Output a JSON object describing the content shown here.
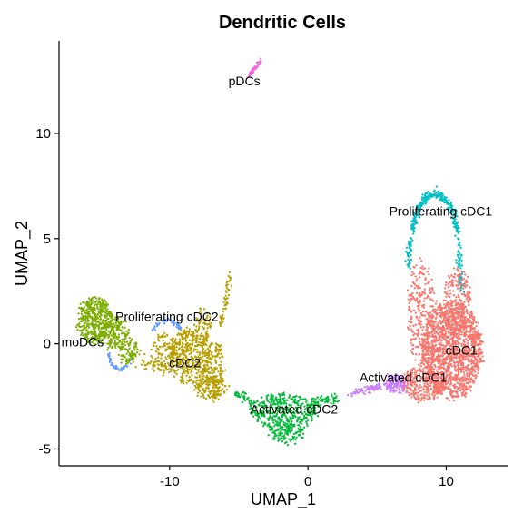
{
  "chart_data": {
    "type": "scatter",
    "title": "Dendritic Cells",
    "xlabel": "UMAP_1",
    "ylabel": "UMAP_2",
    "xlim": [
      -18,
      14.5
    ],
    "ylim": [
      -5.8,
      14.4
    ],
    "xticks": [
      -10,
      0,
      10
    ],
    "yticks": [
      -5,
      0,
      5,
      10
    ],
    "grid": false,
    "legend": "none",
    "clusters": [
      {
        "label": "pDCs",
        "color": "#F564E3",
        "label_pos": [
          -4.6,
          12.5
        ],
        "blobs": [
          {
            "shape": "line",
            "from": [
              -4.4,
              12.6
            ],
            "to": [
              -3.4,
              13.5
            ],
            "sd": 0.06,
            "n": 45
          }
        ]
      },
      {
        "label": "Proliferating cDC1",
        "color": "#00BFC4",
        "label_pos": [
          9.6,
          6.3
        ],
        "blobs": [
          {
            "shape": "ring",
            "center": [
              9.2,
              5.0
            ],
            "rx": 1.6,
            "ry": 2.1,
            "a0": 10,
            "a1": 170,
            "sd": 0.1,
            "n": 260
          },
          {
            "shape": "line",
            "from": [
              7.4,
              5.0
            ],
            "to": [
              7.2,
              3.7
            ],
            "sd": 0.12,
            "n": 40
          },
          {
            "shape": "line",
            "from": [
              10.9,
              5.0
            ],
            "to": [
              11.1,
              2.4
            ],
            "sd": 0.1,
            "n": 60
          }
        ]
      },
      {
        "label": "cDC1",
        "color": "#F8766D",
        "label_pos": [
          11.1,
          -0.3
        ],
        "blobs": [
          {
            "shape": "ellipse",
            "center": [
              10.4,
              -0.3
            ],
            "rx": 2.2,
            "ry": 2.3,
            "n": 1500
          },
          {
            "shape": "ellipse",
            "center": [
              8.2,
              1.4
            ],
            "rx": 1.0,
            "ry": 2.6,
            "n": 250
          },
          {
            "shape": "ellipse",
            "center": [
              10.8,
              2.0
            ],
            "rx": 1.0,
            "ry": 1.6,
            "n": 220
          },
          {
            "shape": "ellipse",
            "center": [
              8.4,
              -1.9
            ],
            "rx": 1.6,
            "ry": 0.8,
            "n": 300
          }
        ]
      },
      {
        "label": "Activated cDC1",
        "color": "#C77CFF",
        "label_pos": [
          6.9,
          -1.6
        ],
        "blobs": [
          {
            "shape": "line",
            "from": [
              3.0,
              -2.4
            ],
            "to": [
              6.6,
              -1.8
            ],
            "sd": 0.09,
            "n": 70
          },
          {
            "shape": "ellipse",
            "center": [
              6.3,
              -1.9
            ],
            "rx": 0.7,
            "ry": 0.4,
            "n": 110
          }
        ]
      },
      {
        "label": "Activated cDC2",
        "color": "#00BA38",
        "label_pos": [
          -1.0,
          -3.1
        ],
        "blobs": [
          {
            "shape": "ellipse",
            "center": [
              -1.8,
              -3.2
            ],
            "rx": 2.4,
            "ry": 0.85,
            "n": 380
          },
          {
            "shape": "ellipse",
            "center": [
              -1.5,
              -4.2
            ],
            "rx": 1.3,
            "ry": 0.5,
            "n": 120
          },
          {
            "shape": "line",
            "from": [
              0.2,
              -2.8
            ],
            "to": [
              2.2,
              -2.6
            ],
            "sd": 0.1,
            "n": 60
          },
          {
            "shape": "line",
            "from": [
              -5.3,
              -2.3
            ],
            "to": [
              -3.8,
              -2.9
            ],
            "sd": 0.12,
            "n": 40
          }
        ]
      },
      {
        "label": "cDC2",
        "color": "#B79F00",
        "label_pos": [
          -8.9,
          -0.9
        ],
        "blobs": [
          {
            "shape": "ellipse",
            "center": [
              -8.5,
              -0.6
            ],
            "rx": 1.5,
            "ry": 1.3,
            "n": 380
          },
          {
            "shape": "ellipse",
            "center": [
              -6.8,
              -1.2
            ],
            "rx": 0.7,
            "ry": 1.4,
            "n": 180
          },
          {
            "shape": "ellipse",
            "center": [
              -10.4,
              -0.4
            ],
            "rx": 0.9,
            "ry": 1.0,
            "n": 120
          },
          {
            "shape": "ellipse",
            "center": [
              -7.6,
              0.8
            ],
            "rx": 0.6,
            "ry": 0.9,
            "n": 70
          },
          {
            "shape": "ellipse",
            "center": [
              -7.0,
              -2.1
            ],
            "rx": 1.2,
            "ry": 0.5,
            "n": 120
          },
          {
            "shape": "line",
            "from": [
              -6.3,
              0.8
            ],
            "to": [
              -5.6,
              3.4
            ],
            "sd": 0.08,
            "n": 50
          },
          {
            "shape": "line",
            "from": [
              -10.2,
              -1.4
            ],
            "to": [
              -12.6,
              -0.6
            ],
            "sd": 0.2,
            "n": 40
          }
        ]
      },
      {
        "label": "Proliferating cDC2",
        "color": "#619CFF",
        "label_pos": [
          -10.2,
          1.3
        ],
        "blobs": [
          {
            "shape": "ring",
            "center": [
              -13.6,
              -0.5
            ],
            "rx": 0.8,
            "ry": 0.7,
            "a0": 180,
            "a1": 340,
            "sd": 0.06,
            "n": 45
          },
          {
            "shape": "ring",
            "center": [
              -10.2,
              0.5
            ],
            "rx": 1.0,
            "ry": 0.6,
            "a0": 20,
            "a1": 170,
            "sd": 0.06,
            "n": 50
          }
        ]
      },
      {
        "label": "moDCs",
        "color": "#7CAE00",
        "label_pos": [
          -16.3,
          0.1
        ],
        "blobs": [
          {
            "shape": "ellipse",
            "center": [
              -15.4,
              1.1
            ],
            "rx": 1.3,
            "ry": 1.1,
            "n": 420
          },
          {
            "shape": "ellipse",
            "center": [
              -14.0,
              0.5
            ],
            "rx": 1.1,
            "ry": 0.7,
            "n": 160
          },
          {
            "shape": "ellipse",
            "center": [
              -13.0,
              -0.3
            ],
            "rx": 0.7,
            "ry": 0.6,
            "n": 80
          }
        ]
      }
    ]
  }
}
